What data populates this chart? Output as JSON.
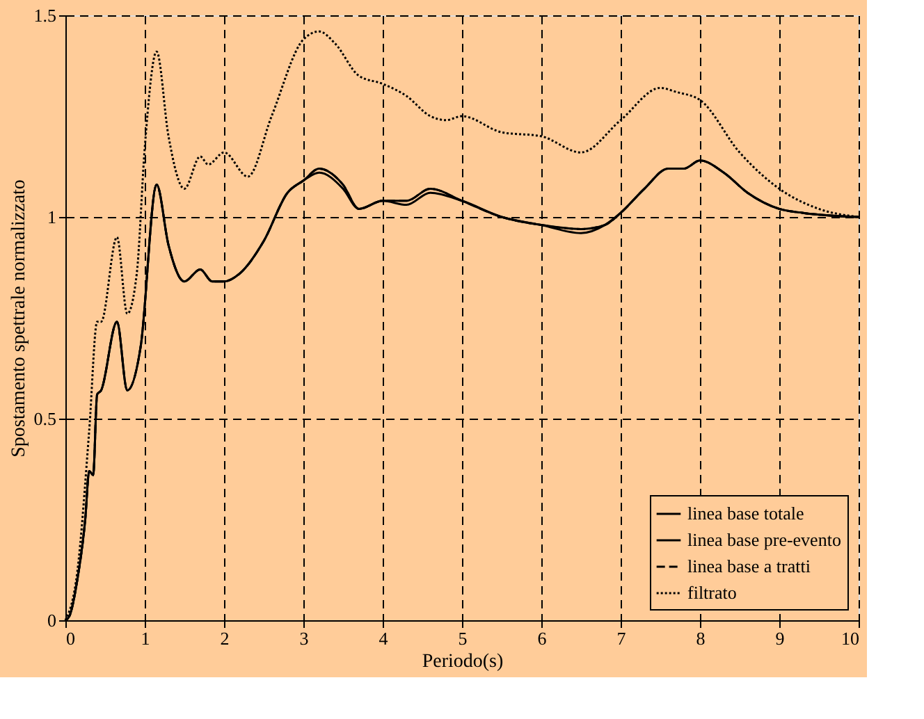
{
  "chart_data": {
    "type": "line",
    "xlabel": "Periodo(s)",
    "ylabel": "Spostamento  spettrale  normalizzato",
    "xlim": [
      0,
      10
    ],
    "ylim": [
      0,
      1.5
    ],
    "xticks": [
      0,
      1,
      2,
      3,
      4,
      5,
      6,
      7,
      8,
      9,
      10
    ],
    "yticks": [
      0,
      0.5,
      1,
      1.5
    ],
    "grid": true,
    "legend": "bottom right",
    "series": [
      {
        "name": "linea base totale",
        "color": "#000000",
        "line_style": "solid",
        "x": [
          0,
          0.05,
          0.15,
          0.25,
          0.3,
          0.35,
          0.4,
          0.45,
          0.65,
          0.78,
          0.95,
          1.15,
          1.3,
          1.5,
          1.7,
          1.85,
          2.0,
          2.2,
          2.5,
          2.8,
          3.0,
          3.2,
          3.5,
          3.7,
          4.0,
          4.3,
          4.6,
          5.0,
          5.5,
          6.0,
          6.5,
          6.8,
          7.0,
          7.3,
          7.6,
          7.8,
          8.0,
          8.3,
          8.6,
          9.0,
          9.3,
          10
        ],
        "values": [
          0,
          0.01,
          0.1,
          0.25,
          0.37,
          0.36,
          0.56,
          0.57,
          0.74,
          0.57,
          0.68,
          1.08,
          0.93,
          0.84,
          0.87,
          0.84,
          0.84,
          0.86,
          0.94,
          1.06,
          1.09,
          1.11,
          1.07,
          1.02,
          1.04,
          1.03,
          1.06,
          1.04,
          1.0,
          0.98,
          0.96,
          0.98,
          1.01,
          1.07,
          1.12,
          1.12,
          1.14,
          1.11,
          1.06,
          1.02,
          1.01,
          1.0
        ]
      },
      {
        "name": "linea base pre-evento",
        "color": "#000000",
        "line_style": "solid",
        "x": [
          0,
          0.05,
          0.15,
          0.25,
          0.3,
          0.35,
          0.4,
          0.45,
          0.65,
          0.78,
          0.95,
          1.15,
          1.3,
          1.5,
          1.7,
          1.85,
          2.0,
          2.2,
          2.5,
          2.8,
          3.0,
          3.2,
          3.5,
          3.7,
          4.0,
          4.3,
          4.6,
          5.0,
          5.5,
          6.0,
          6.5,
          6.8,
          7.0,
          7.3,
          7.6,
          7.8,
          8.0,
          8.3,
          8.6,
          9.0,
          9.3,
          10
        ],
        "values": [
          0,
          0.01,
          0.1,
          0.25,
          0.37,
          0.36,
          0.56,
          0.57,
          0.74,
          0.57,
          0.68,
          1.08,
          0.93,
          0.84,
          0.87,
          0.84,
          0.84,
          0.86,
          0.94,
          1.06,
          1.09,
          1.12,
          1.08,
          1.02,
          1.04,
          1.04,
          1.07,
          1.04,
          1.0,
          0.98,
          0.97,
          0.98,
          1.01,
          1.07,
          1.12,
          1.12,
          1.14,
          1.11,
          1.06,
          1.02,
          1.01,
          1.0
        ]
      },
      {
        "name": "linea base a tratti",
        "color": "#000000",
        "line_style": "dashed",
        "x": [
          0,
          0.05,
          0.15,
          0.25,
          0.3,
          0.35,
          0.4,
          0.45,
          0.65,
          0.78,
          0.95,
          1.15,
          1.3,
          1.5,
          1.7,
          1.85,
          2.0,
          2.2,
          2.5,
          2.8,
          3.0,
          3.2,
          3.5,
          3.7,
          4.0,
          4.3,
          4.6,
          5.0,
          5.5,
          6.0,
          6.5,
          6.8,
          7.0,
          7.3,
          7.6,
          7.8,
          8.0,
          8.3,
          8.6,
          9.0,
          9.3,
          10
        ],
        "values": [
          0,
          0.01,
          0.1,
          0.25,
          0.37,
          0.36,
          0.56,
          0.57,
          0.74,
          0.57,
          0.68,
          1.08,
          0.93,
          0.84,
          0.87,
          0.84,
          0.84,
          0.86,
          0.94,
          1.06,
          1.09,
          1.12,
          1.08,
          1.02,
          1.04,
          1.04,
          1.07,
          1.04,
          1.0,
          0.98,
          0.97,
          0.98,
          1.01,
          1.07,
          1.12,
          1.12,
          1.14,
          1.11,
          1.06,
          1.02,
          1.01,
          1.0
        ]
      },
      {
        "name": "filtrato",
        "color": "#000000",
        "line_style": "dotted",
        "x": [
          0,
          0.15,
          0.3,
          0.4,
          0.45,
          0.65,
          0.78,
          0.9,
          1.0,
          1.15,
          1.3,
          1.5,
          1.7,
          1.8,
          2.0,
          2.3,
          2.6,
          3.0,
          3.2,
          3.4,
          3.7,
          4.0,
          4.3,
          4.6,
          4.8,
          5.0,
          5.5,
          6.0,
          6.5,
          7.0,
          7.5,
          7.7,
          8.0,
          8.5,
          9.0,
          9.5,
          10
        ],
        "values": [
          0,
          0.12,
          0.47,
          0.74,
          0.74,
          0.95,
          0.76,
          0.86,
          1.17,
          1.41,
          1.2,
          1.07,
          1.15,
          1.13,
          1.16,
          1.1,
          1.25,
          1.44,
          1.46,
          1.43,
          1.35,
          1.33,
          1.3,
          1.25,
          1.24,
          1.25,
          1.21,
          1.2,
          1.16,
          1.24,
          1.32,
          1.31,
          1.29,
          1.16,
          1.07,
          1.02,
          1.0
        ]
      }
    ]
  }
}
